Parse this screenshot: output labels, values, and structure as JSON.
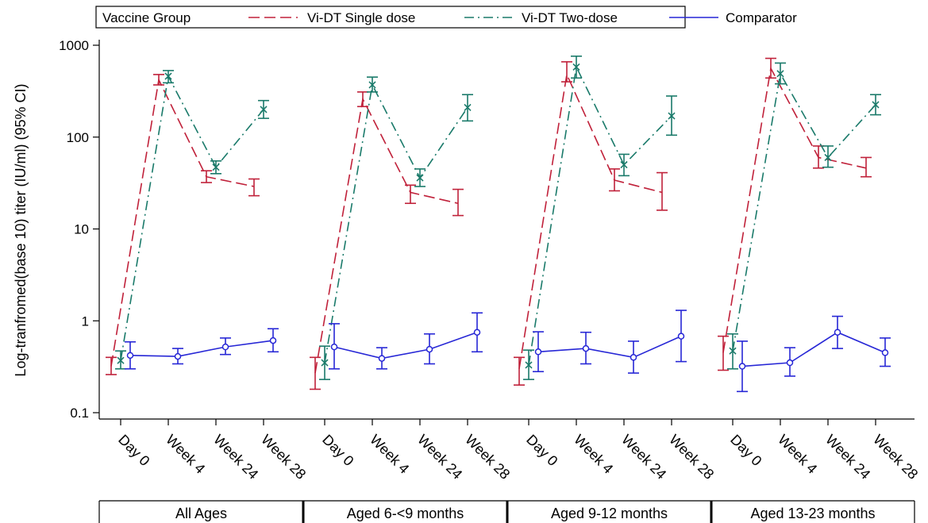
{
  "chart_data": {
    "type": "line",
    "ylabel": "Log-tranfromed(base 10) titer (IU/ml) (95% CI)",
    "yscale": "log",
    "ylim": [
      0.1,
      1000
    ],
    "yticks": [
      0.1,
      1,
      10,
      100,
      1000
    ],
    "ytick_labels": [
      "0.1",
      "1",
      "10",
      "100",
      "1000"
    ],
    "legend": {
      "title": "Vaccine Group",
      "placement": "top"
    },
    "timepoints": [
      "Day 0",
      "Week 4",
      "Week 24",
      "Week 28"
    ],
    "groups": [
      "All Ages",
      "Aged 6-<9 months",
      "Aged 9-12 months",
      "Aged 13-23 months"
    ],
    "series": [
      {
        "name": "Vi-DT Single dose",
        "color": "#c0213a",
        "style": "dashed",
        "marker": "none",
        "data": [
          {
            "group": "All Ages",
            "timepoints": [
              "Day 0",
              "Week 4",
              "Week 24",
              "Week 28"
            ],
            "values": [
              0.32,
              420,
              37,
              29
            ],
            "ci_low": [
              0.26,
              370,
              32,
              23
            ],
            "ci_high": [
              0.4,
              480,
              43,
              35
            ]
          },
          {
            "group": "Aged 6-<9 months",
            "timepoints": [
              "Day 0",
              "Week 4",
              "Week 24",
              "Week 28"
            ],
            "values": [
              0.27,
              260,
              25,
              19
            ],
            "ci_low": [
              0.18,
              215,
              19,
              14
            ],
            "ci_high": [
              0.4,
              310,
              30,
              27
            ]
          },
          {
            "group": "Aged 9-12 months",
            "timepoints": [
              "Day 0",
              "Week 4",
              "Week 24",
              "Week 28"
            ],
            "values": [
              0.3,
              480,
              34,
              25
            ],
            "ci_low": [
              0.2,
              400,
              26,
              16
            ],
            "ci_high": [
              0.4,
              660,
              45,
              41
            ]
          },
          {
            "group": "Aged 13-23 months",
            "timepoints": [
              "Day 0",
              "Week 4",
              "Week 24",
              "Week 28"
            ],
            "values": [
              0.45,
              560,
              60,
              46
            ],
            "ci_low": [
              0.29,
              440,
              46,
              37
            ],
            "ci_high": [
              0.68,
              720,
              80,
              60
            ]
          }
        ]
      },
      {
        "name": "Vi-DT Two-dose",
        "color": "#1a7a6a",
        "style": "dashdot",
        "marker": "x",
        "data": [
          {
            "group": "All Ages",
            "timepoints": [
              "Day 0",
              "Week 4",
              "Week 24",
              "Week 28"
            ],
            "values": [
              0.37,
              460,
              47,
              200
            ],
            "ci_low": [
              0.3,
              390,
              40,
              160
            ],
            "ci_high": [
              0.47,
              530,
              55,
              250
            ]
          },
          {
            "group": "Aged 6-<9 months",
            "timepoints": [
              "Day 0",
              "Week 4",
              "Week 24",
              "Week 28"
            ],
            "values": [
              0.35,
              370,
              36,
              210
            ],
            "ci_low": [
              0.23,
              310,
              29,
              150
            ],
            "ci_high": [
              0.53,
              450,
              45,
              290
            ]
          },
          {
            "group": "Aged 9-12 months",
            "timepoints": [
              "Day 0",
              "Week 4",
              "Week 24",
              "Week 28"
            ],
            "values": [
              0.33,
              580,
              50,
              170
            ],
            "ci_low": [
              0.23,
              440,
              38,
              105
            ],
            "ci_high": [
              0.48,
              760,
              65,
              280
            ]
          },
          {
            "group": "Aged 13-23 months",
            "timepoints": [
              "Day 0",
              "Week 4",
              "Week 24",
              "Week 28"
            ],
            "values": [
              0.47,
              490,
              60,
              225
            ],
            "ci_low": [
              0.3,
              380,
              47,
              175
            ],
            "ci_high": [
              0.72,
              640,
              80,
              290
            ]
          }
        ]
      },
      {
        "name": "Comparator",
        "color": "#2727d6",
        "style": "solid",
        "marker": "o",
        "data": [
          {
            "group": "All Ages",
            "timepoints": [
              "Day 0",
              "Week 4",
              "Week 24",
              "Week 28"
            ],
            "values": [
              0.42,
              0.41,
              0.52,
              0.61
            ],
            "ci_low": [
              0.3,
              0.34,
              0.43,
              0.46
            ],
            "ci_high": [
              0.59,
              0.5,
              0.65,
              0.82
            ]
          },
          {
            "group": "Aged 6-<9 months",
            "timepoints": [
              "Day 0",
              "Week 4",
              "Week 24",
              "Week 28"
            ],
            "values": [
              0.52,
              0.39,
              0.49,
              0.75
            ],
            "ci_low": [
              0.3,
              0.3,
              0.34,
              0.46
            ],
            "ci_high": [
              0.93,
              0.51,
              0.72,
              1.22
            ]
          },
          {
            "group": "Aged 9-12 months",
            "timepoints": [
              "Day 0",
              "Week 4",
              "Week 24",
              "Week 28"
            ],
            "values": [
              0.46,
              0.5,
              0.4,
              0.68
            ],
            "ci_low": [
              0.28,
              0.34,
              0.27,
              0.36
            ],
            "ci_high": [
              0.76,
              0.75,
              0.6,
              1.3
            ]
          },
          {
            "group": "Aged 13-23 months",
            "timepoints": [
              "Day 0",
              "Week 4",
              "Week 24",
              "Week 28"
            ],
            "values": [
              0.32,
              0.35,
              0.75,
              0.45
            ],
            "ci_low": [
              0.17,
              0.25,
              0.5,
              0.32
            ],
            "ci_high": [
              0.6,
              0.51,
              1.12,
              0.65
            ]
          }
        ]
      }
    ]
  }
}
